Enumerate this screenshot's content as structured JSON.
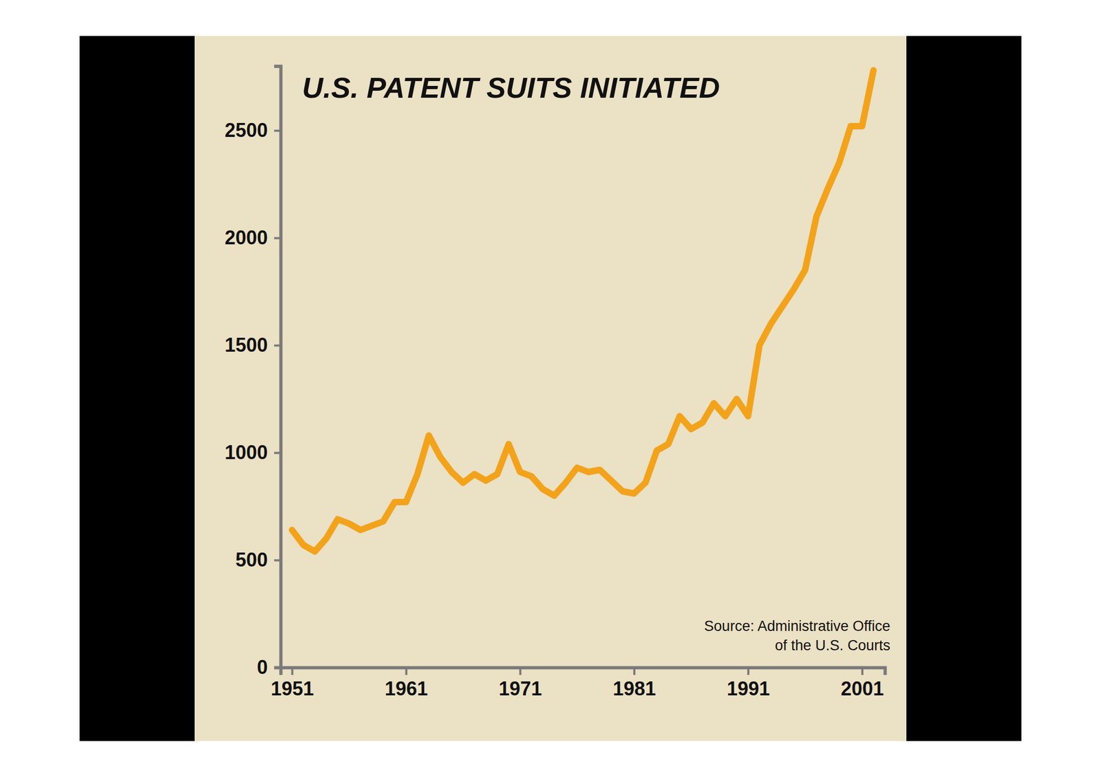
{
  "chart_data": {
    "type": "line",
    "title": "U.S. PATENT SUITS INITIATED",
    "annotations": [
      "Source: Administrative Office",
      "of the U.S. Courts"
    ],
    "x": [
      1951,
      1952,
      1953,
      1954,
      1955,
      1956,
      1957,
      1958,
      1959,
      1960,
      1961,
      1962,
      1963,
      1964,
      1965,
      1966,
      1967,
      1968,
      1969,
      1970,
      1971,
      1972,
      1973,
      1974,
      1975,
      1976,
      1977,
      1978,
      1979,
      1980,
      1981,
      1982,
      1983,
      1984,
      1985,
      1986,
      1987,
      1988,
      1989,
      1990,
      1991,
      1992,
      1993,
      1994,
      1995,
      1996,
      1997,
      1998,
      1999,
      2000,
      2001,
      2002
    ],
    "values": [
      640,
      570,
      540,
      600,
      690,
      670,
      640,
      660,
      680,
      770,
      770,
      900,
      1080,
      980,
      910,
      860,
      900,
      870,
      900,
      1040,
      910,
      890,
      830,
      800,
      860,
      930,
      910,
      920,
      870,
      820,
      810,
      860,
      1010,
      1040,
      1170,
      1110,
      1140,
      1230,
      1170,
      1250,
      1170,
      1500,
      1600,
      1680,
      1760,
      1850,
      2100,
      2230,
      2350,
      2520,
      2520,
      2780
    ],
    "color": "#f2a31b",
    "xlim": [
      1950,
      2003
    ],
    "xticks": [
      1951,
      1961,
      1971,
      1981,
      1991,
      2001
    ],
    "ylim": [
      0,
      2800
    ],
    "yticks": [
      0,
      500,
      1000,
      1500,
      2000,
      2500
    ],
    "grid": false
  }
}
